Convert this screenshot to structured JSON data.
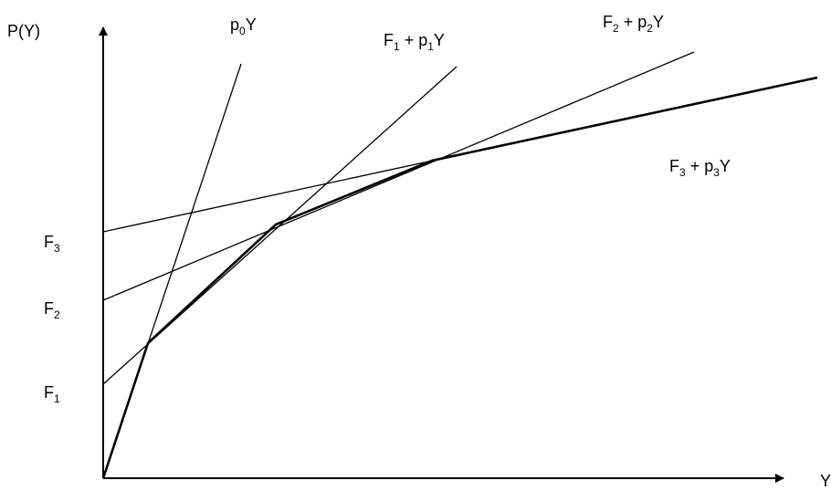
{
  "axes": {
    "y_label": "P(Y)",
    "x_label": "Y"
  },
  "intercept_labels": [
    {
      "base": "F",
      "sub": "3"
    },
    {
      "base": "F",
      "sub": "2"
    },
    {
      "base": "F",
      "sub": "1"
    }
  ],
  "line_labels": {
    "p0": {
      "p": "p",
      "sub": "0",
      "rest": "Y"
    },
    "l1": {
      "pre": "F",
      "sub1": "1",
      "mid": " + p",
      "sub2": "1",
      "rest": "Y"
    },
    "l2": {
      "pre": "F",
      "sub1": "2",
      "mid": " + p",
      "sub2": "2",
      "rest": "Y"
    },
    "l3": {
      "pre": "F",
      "sub1": "3",
      "mid": " + p",
      "sub2": "3",
      "rest": "Y"
    }
  },
  "colors": {
    "ink": "#000000",
    "background": "#ffffff"
  }
}
